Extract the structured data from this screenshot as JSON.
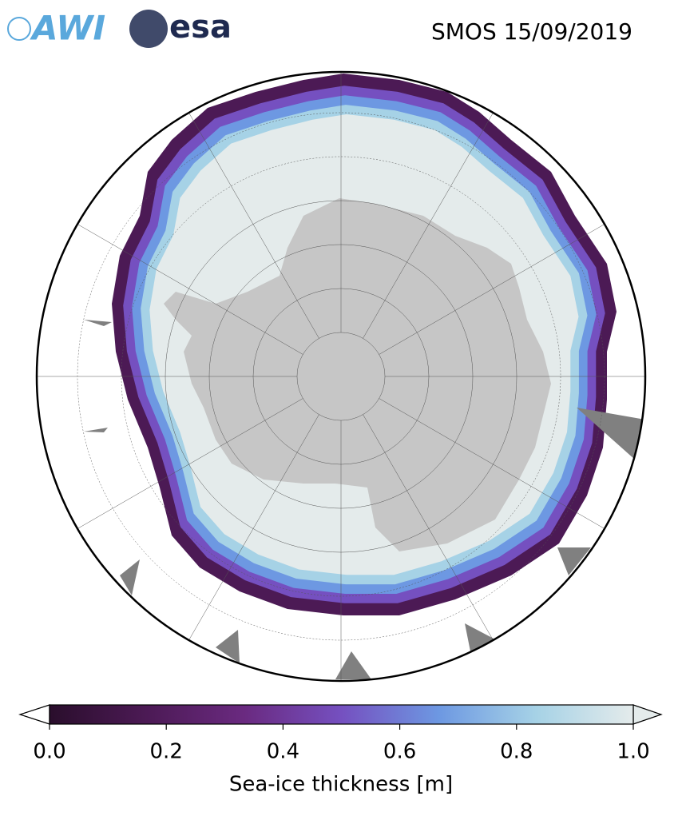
{
  "header": {
    "logos": [
      "AWI",
      "esa"
    ],
    "title": "SMOS 15/09/2019"
  },
  "colorbar": {
    "label": "Sea-ice thickness [m]",
    "lim": [
      0,
      1
    ],
    "ticks": [
      {
        "value": 0,
        "label": "0.0"
      },
      {
        "value": 0.2,
        "label": "0.2"
      },
      {
        "value": 0.4,
        "label": "0.4"
      },
      {
        "value": 0.6,
        "label": "0.6"
      },
      {
        "value": 0.8,
        "label": "0.8"
      },
      {
        "value": 1,
        "label": "1.0"
      }
    ],
    "colormap": [
      "#2a0e2c",
      "#4c1a55",
      "#6a2a80",
      "#7550c0",
      "#6d98e2",
      "#a6d2e6",
      "#e4ebeb"
    ]
  }
}
